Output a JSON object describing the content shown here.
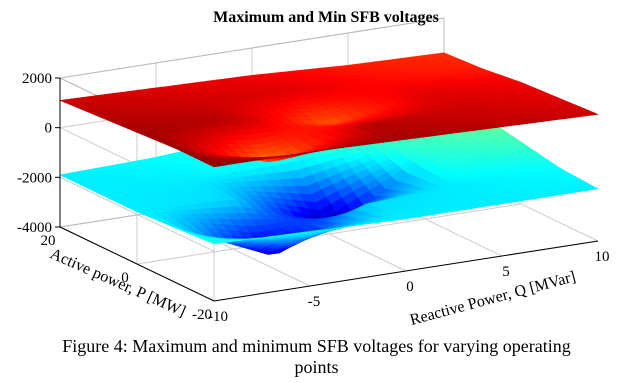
{
  "chart_data": {
    "type": "surface",
    "title": "Maximum and Min SFB voltages",
    "xlabel": "Reactive Power, Q [MVar]",
    "ylabel": "Active power, P [MW]",
    "zlabel": "",
    "x_ticks": [
      "-10",
      "-5",
      "0",
      "5",
      "10"
    ],
    "y_ticks": [
      "-20",
      "0",
      "20"
    ],
    "z_ticks": [
      "2000",
      "0",
      "-2000",
      "-4000"
    ],
    "xlim": [
      -10,
      10
    ],
    "ylim": [
      -20,
      20
    ],
    "zlim": [
      -4000,
      2000
    ],
    "grid": true,
    "colormap": "jet",
    "series": [
      {
        "name": "",
        "description_values": "max surface",
        "z_approx": [
          [
            1400,
            1400,
            1300,
            1200,
            1100
          ],
          [
            1400,
            200,
            1200,
            1100,
            1000
          ],
          [
            1300,
            1200,
            400,
            1000,
            900
          ],
          [
            1200,
            1100,
            1000,
            800,
            700
          ],
          [
            1100,
            1000,
            900,
            700,
            600
          ]
        ]
      },
      {
        "name": "",
        "description_values": "min surface",
        "z_approx": [
          [
            -1700,
            -1800,
            -1900,
            -1900,
            -1900
          ],
          [
            -1800,
            -3600,
            -2000,
            -1900,
            -1800
          ],
          [
            -1900,
            -2000,
            -3700,
            -1700,
            -1500
          ],
          [
            -1900,
            -1900,
            -1700,
            -1500,
            -1200
          ],
          [
            -1900,
            -1800,
            -1500,
            -1200,
            -1000
          ]
        ]
      }
    ]
  },
  "caption": {
    "line1": "Figure 4: Maximum and minimum SFB voltages for varying operating",
    "line2": "points"
  },
  "colors": {
    "box": "#000000",
    "grid": "#cccccc"
  }
}
